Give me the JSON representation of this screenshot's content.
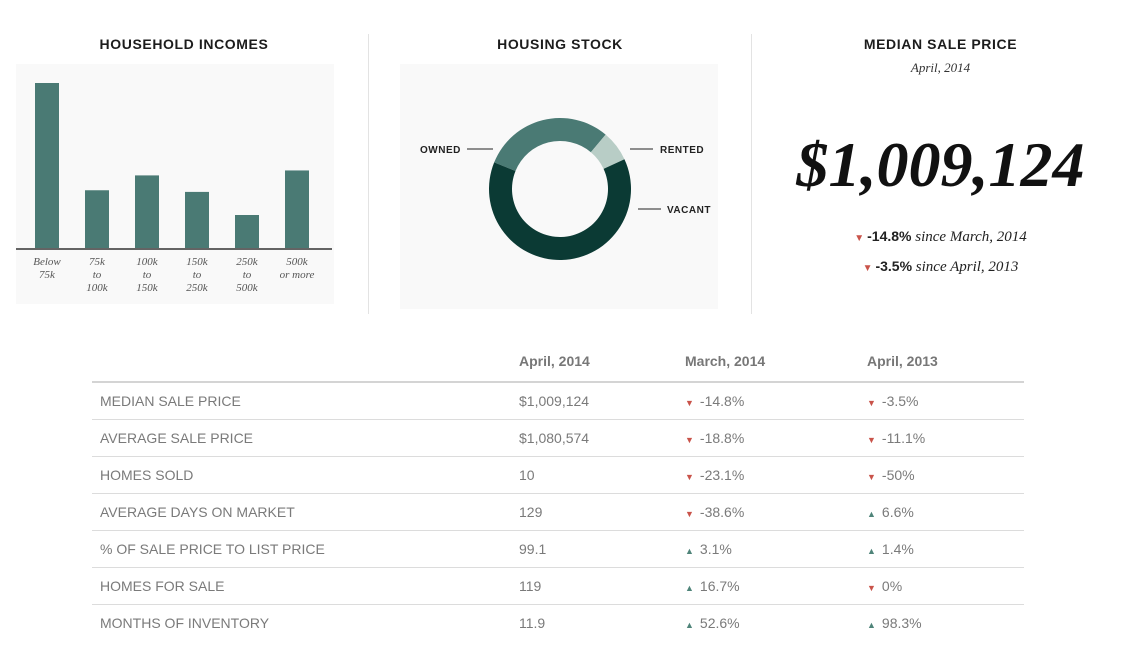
{
  "household_incomes": {
    "title": "HOUSEHOLD INCOMES",
    "chart_data": {
      "type": "bar",
      "title": "HOUSEHOLD INCOMES",
      "categories": [
        [
          "Below",
          "75k"
        ],
        [
          "75k",
          "to",
          "100k"
        ],
        [
          "100k",
          "to",
          "150k"
        ],
        [
          "150k",
          "to",
          "250k"
        ],
        [
          "250k",
          "to",
          "500k"
        ],
        [
          "500k",
          "or more"
        ]
      ],
      "values": [
        100,
        35,
        44,
        34,
        20,
        47
      ],
      "ylim": [
        0,
        100
      ],
      "grid": false,
      "bar_color": "#4a7a74"
    }
  },
  "housing_stock": {
    "title": "HOUSING STOCK",
    "chart_data": {
      "type": "pie",
      "title": "HOUSING STOCK",
      "labels": [
        "RENTED",
        "VACANT",
        "OWNED"
      ],
      "values": [
        30,
        7,
        63
      ],
      "colors": [
        "#4a7a74",
        "#b8cdc6",
        "#0b3a34"
      ]
    }
  },
  "median_sale": {
    "title": "MEDIAN SALE PRICE",
    "subtitle": "April, 2014",
    "price": "$1,009,124",
    "changes": [
      {
        "direction": "down",
        "pct": "-14.8%",
        "label": "since March, 2014"
      },
      {
        "direction": "down",
        "pct": "-3.5%",
        "label": "since April, 2013"
      }
    ]
  },
  "table": {
    "headers": [
      "",
      "April, 2014",
      "March, 2014",
      "April, 2013"
    ],
    "rows": [
      {
        "label": "MEDIAN SALE PRICE",
        "value": "$1,009,124",
        "m": {
          "dir": "down",
          "v": "-14.8%"
        },
        "y": {
          "dir": "down",
          "v": "-3.5%"
        }
      },
      {
        "label": "AVERAGE SALE PRICE",
        "value": "$1,080,574",
        "m": {
          "dir": "down",
          "v": "-18.8%"
        },
        "y": {
          "dir": "down",
          "v": "-11.1%"
        }
      },
      {
        "label": "HOMES SOLD",
        "value": "10",
        "m": {
          "dir": "down",
          "v": "-23.1%"
        },
        "y": {
          "dir": "down",
          "v": "-50%"
        }
      },
      {
        "label": "AVERAGE DAYS ON MARKET",
        "value": "129",
        "m": {
          "dir": "down",
          "v": "-38.6%"
        },
        "y": {
          "dir": "up",
          "v": "6.6%"
        }
      },
      {
        "label": "% OF SALE PRICE TO LIST PRICE",
        "value": "99.1",
        "m": {
          "dir": "up",
          "v": "3.1%"
        },
        "y": {
          "dir": "up",
          "v": "1.4%"
        }
      },
      {
        "label": "HOMES FOR SALE",
        "value": "119",
        "m": {
          "dir": "up",
          "v": "16.7%"
        },
        "y": {
          "dir": "down",
          "v": "0%"
        }
      },
      {
        "label": "MONTHS OF INVENTORY",
        "value": "11.9",
        "m": {
          "dir": "up",
          "v": "52.6%"
        },
        "y": {
          "dir": "up",
          "v": "98.3%"
        }
      }
    ]
  },
  "colors": {
    "down": "#c9534a",
    "up": "#4f8479"
  }
}
